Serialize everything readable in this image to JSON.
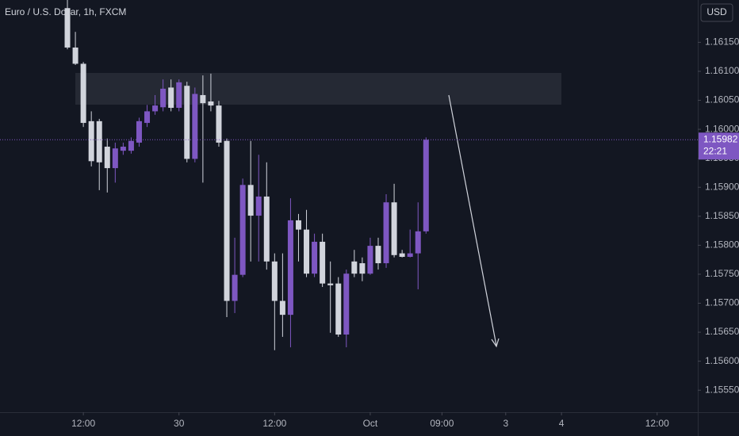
{
  "chart_data": {
    "type": "candlestick",
    "title": "Euro / U.S. Dollar, 1h, FXCM",
    "currency": "USD",
    "up_color": "#7e57c2",
    "down_color": "#d1d4dc",
    "open": [
      1.16209,
      1.16141,
      1.16113,
      1.16014,
      1.16014,
      1.1597,
      1.15933,
      1.15963,
      1.15963,
      1.15977,
      1.16011,
      1.16031,
      1.16038,
      1.16072,
      1.16037,
      1.16075,
      1.15949,
      1.16059,
      1.16048,
      1.16041,
      1.1598,
      1.15704,
      1.15749,
      1.15904,
      1.15851,
      1.15884,
      1.15772,
      1.15704,
      1.1568,
      1.15843,
      1.15827,
      1.15751,
      1.15806,
      1.15734,
      1.15734,
      1.15646,
      1.15772,
      1.15769,
      1.15751,
      1.15799,
      1.15769,
      1.15874,
      1.15786,
      1.1578,
      1.15786,
      1.15824
    ],
    "high": [
      1.16223,
      1.16168,
      1.16116,
      1.16031,
      1.16018,
      1.15984,
      1.15977,
      1.15977,
      1.15986,
      1.1602,
      1.16042,
      1.16059,
      1.16086,
      1.16086,
      1.16086,
      1.16082,
      1.16072,
      1.16093,
      1.16096,
      1.16049,
      1.15984,
      1.15813,
      1.15915,
      1.1598,
      1.15956,
      1.15943,
      1.15786,
      1.15786,
      1.15881,
      1.15854,
      1.15861,
      1.1582,
      1.1582,
      1.15772,
      1.15745,
      1.15758,
      1.15792,
      1.15779,
      1.15813,
      1.15813,
      1.15888,
      1.15906,
      1.15792,
      1.15827,
      1.15874,
      1.15986
    ],
    "low": [
      1.16138,
      1.16111,
      1.16004,
      1.15936,
      1.15895,
      1.15891,
      1.15908,
      1.15956,
      1.15958,
      1.1597,
      1.16004,
      1.16025,
      1.16031,
      1.16031,
      1.16031,
      1.15943,
      1.15943,
      1.15908,
      1.16031,
      1.1597,
      1.15676,
      1.15683,
      1.15745,
      1.15772,
      1.15772,
      1.15758,
      1.15619,
      1.15642,
      1.15624,
      1.15772,
      1.15745,
      1.15745,
      1.15728,
      1.15649,
      1.15642,
      1.15624,
      1.15745,
      1.15738,
      1.15749,
      1.15758,
      1.15761,
      1.15779,
      1.15779,
      1.15779,
      1.15724,
      1.1582
    ],
    "close": [
      1.16141,
      1.16113,
      1.16011,
      1.15945,
      1.15943,
      1.15933,
      1.15967,
      1.1597,
      1.1598,
      1.16014,
      1.16031,
      1.16041,
      1.1607,
      1.16037,
      1.16081,
      1.15949,
      1.16061,
      1.16045,
      1.16041,
      1.15977,
      1.15704,
      1.15749,
      1.15904,
      1.15851,
      1.15884,
      1.15772,
      1.15704,
      1.1568,
      1.15843,
      1.15827,
      1.15751,
      1.15806,
      1.15734,
      1.15731,
      1.15646,
      1.15751,
      1.15751,
      1.15751,
      1.15799,
      1.15769,
      1.15874,
      1.15783,
      1.1578,
      1.15786,
      1.15824,
      1.15982
    ],
    "ylim": [
      1.15512,
      1.16223
    ],
    "yticks": [
      {
        "value": 1.1555,
        "label": "1.15550"
      },
      {
        "value": 1.156,
        "label": "1.15600"
      },
      {
        "value": 1.1565,
        "label": "1.15650"
      },
      {
        "value": 1.157,
        "label": "1.15700"
      },
      {
        "value": 1.1575,
        "label": "1.15750"
      },
      {
        "value": 1.158,
        "label": "1.15800"
      },
      {
        "value": 1.1585,
        "label": "1.15850"
      },
      {
        "value": 1.159,
        "label": "1.15900"
      },
      {
        "value": 1.1595,
        "label": "1.15950"
      },
      {
        "value": 1.16,
        "label": "1.16000"
      },
      {
        "value": 1.1605,
        "label": "1.16050"
      },
      {
        "value": 1.161,
        "label": "1.16100"
      },
      {
        "value": 1.1615,
        "label": "1.16150"
      }
    ],
    "xlim": [
      -8.46,
      79.1
    ],
    "xticks": [
      {
        "value": 2,
        "label": "12:00"
      },
      {
        "value": 14,
        "label": "30"
      },
      {
        "value": 26,
        "label": "12:00"
      },
      {
        "value": 38,
        "label": "Oct"
      },
      {
        "value": 47,
        "label": "09:00"
      },
      {
        "value": 55,
        "label": "3"
      },
      {
        "value": 62,
        "label": "4"
      },
      {
        "value": 74,
        "label": "12:00"
      }
    ],
    "last_price": 1.15982,
    "countdown": "22:21"
  }
}
